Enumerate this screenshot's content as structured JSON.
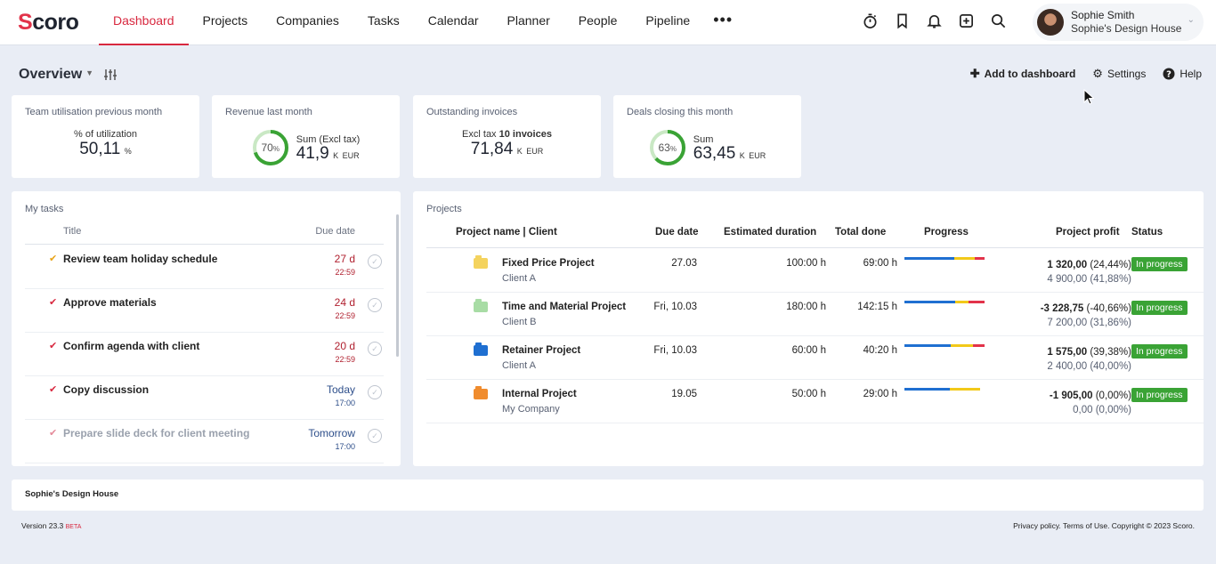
{
  "nav": {
    "logo": "Scoro",
    "items": [
      {
        "label": "Dashboard",
        "active": true
      },
      {
        "label": "Projects"
      },
      {
        "label": "Companies"
      },
      {
        "label": "Tasks"
      },
      {
        "label": "Calendar"
      },
      {
        "label": "Planner"
      },
      {
        "label": "People"
      },
      {
        "label": "Pipeline"
      }
    ],
    "more": "•••",
    "icons": [
      "timer-icon",
      "bookmark-icon",
      "bell-icon",
      "add-square-icon",
      "search-icon"
    ],
    "user": {
      "name": "Sophie Smith",
      "company": "Sophie's Design House"
    }
  },
  "overview": {
    "title": "Overview",
    "add_label": "Add to dashboard",
    "settings_label": "Settings",
    "help_label": "Help"
  },
  "kpis": {
    "utilisation": {
      "title": "Team utilisation previous month",
      "sub": "% of utilization",
      "value": "50,11",
      "unit": "%"
    },
    "revenue": {
      "title": "Revenue last month",
      "percent": 70,
      "percent_label": "70",
      "sub": "Sum (Excl tax)",
      "value": "41,9",
      "unit": "K",
      "currency": "EUR"
    },
    "invoices": {
      "title": "Outstanding invoices",
      "sub_prefix": "Excl tax",
      "sub_bold": "10 invoices",
      "value": "71,84",
      "unit": "K",
      "currency": "EUR"
    },
    "deals": {
      "title": "Deals closing this month",
      "percent": 63,
      "percent_label": "63",
      "sub": "Sum",
      "value": "63,45",
      "unit": "K",
      "currency": "EUR"
    }
  },
  "tasks": {
    "title": "My tasks",
    "col_title": "Title",
    "col_due": "Due date",
    "items": [
      {
        "title": "Review team holiday schedule",
        "due": "27 d",
        "time": "22:59"
      },
      {
        "title": "Approve materials",
        "due": "24 d",
        "time": "22:59"
      },
      {
        "title": "Confirm agenda with client",
        "due": "20 d",
        "time": "22:59"
      },
      {
        "title": "Copy discussion",
        "due": "Today",
        "time": "17:00"
      },
      {
        "title": "Prepare slide deck for client meeting",
        "due": "Tomorrow",
        "time": "17:00"
      }
    ]
  },
  "projects": {
    "title": "Projects",
    "headers": {
      "name": "Project name | Client",
      "due": "Due date",
      "estimated": "Estimated duration",
      "done": "Total done",
      "progress": "Progress",
      "profit": "Project profit",
      "status": "Status"
    },
    "rows": [
      {
        "name": "Fixed Price Project",
        "client": "Client A",
        "due": "27.03",
        "estimated": "100:00 h",
        "done": "69:00 h",
        "profit": "1 320,00",
        "profit_pct": "(24,44%)",
        "profit_sub": "4 900,00 (41,88%)",
        "status": "In progress",
        "folder_color": "#f4d35e",
        "progress": [
          0.62,
          0.26,
          0.12
        ]
      },
      {
        "name": "Time and Material Project",
        "client": "Client B",
        "due": "Fri, 10.03",
        "estimated": "180:00 h",
        "done": "142:15 h",
        "profit": "-3 228,75",
        "profit_pct": "(-40,66%)",
        "profit_sub": "7 200,00 (31,86%)",
        "status": "In progress",
        "folder_color": "#a8dca5",
        "progress": [
          0.63,
          0.17,
          0.2
        ]
      },
      {
        "name": "Retainer Project",
        "client": "Client A",
        "due": "Fri, 10.03",
        "estimated": "60:00 h",
        "done": "40:20 h",
        "profit": "1 575,00",
        "profit_pct": "(39,38%)",
        "profit_sub": "2 400,00 (40,00%)",
        "status": "In progress",
        "folder_color": "#1f6fd1",
        "progress": [
          0.58,
          0.28,
          0.14
        ]
      },
      {
        "name": "Internal Project",
        "client": "My Company",
        "due": "19.05",
        "estimated": "50:00 h",
        "done": "29:00 h",
        "profit": "-1 905,00",
        "profit_pct": "(0,00%)",
        "profit_sub": "0,00 (0,00%)",
        "status": "In progress",
        "folder_color": "#f08c2e",
        "progress": [
          0.57,
          0.37,
          0.0
        ]
      }
    ]
  },
  "footer": {
    "company": "Sophie's Design House",
    "version": "Version 23.3",
    "beta": "BETA",
    "legal": "Privacy policy. Terms of Use. Copyright © 2023 Scoro."
  },
  "colors": {
    "accent": "#d8283f",
    "status_green": "#3aa335",
    "progress_blue": "#1f6fd1",
    "progress_yellow": "#f2c919",
    "progress_red": "#e2334a"
  }
}
